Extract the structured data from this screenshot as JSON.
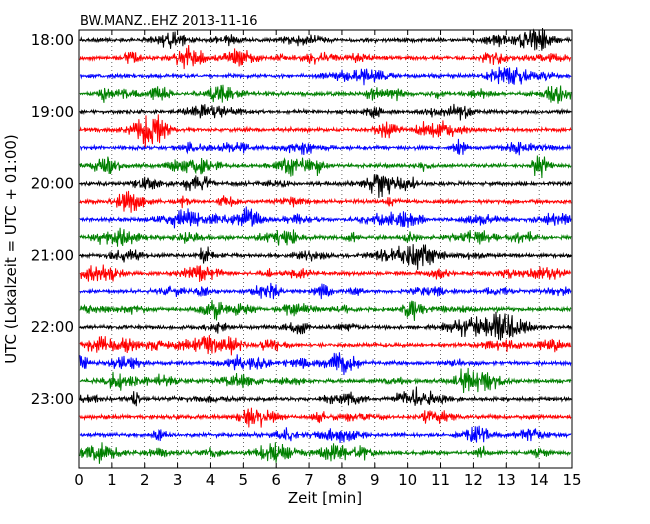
{
  "chart_data": {
    "type": "line",
    "title": "BW.MANZ..EHZ 2013-11-16",
    "xlabel": "Zeit  [min]",
    "ylabel": "UTC (Lokalzeit = UTC + 01:00)",
    "xlim": [
      0,
      15
    ],
    "x_ticks": [
      "0",
      "1",
      "2",
      "3",
      "4",
      "5",
      "6",
      "7",
      "8",
      "9",
      "10",
      "11",
      "12",
      "13",
      "14",
      "15"
    ],
    "y_ticks": [
      "18:00",
      "19:00",
      "20:00",
      "21:00",
      "22:00",
      "23:00"
    ],
    "row_start": "18:00",
    "row_interval_minutes": 15,
    "rows": 24,
    "grid": "vertical dotted at each minute",
    "colors": [
      "#000000",
      "#ff0000",
      "#0000ff",
      "#008000"
    ]
  }
}
